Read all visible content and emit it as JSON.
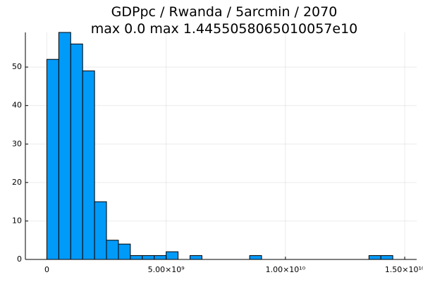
{
  "chart_data": {
    "type": "bar",
    "title": "GDPpc / Rwanda / 5arcmin / 2070",
    "subtitle": "max 0.0  max 1.4455058065010057e10",
    "xlabel": "",
    "ylabel": "",
    "bin_width": 500000000,
    "bins_start": 0,
    "values": [
      52,
      59,
      56,
      49,
      15,
      5,
      4,
      1,
      1,
      1,
      2,
      0,
      1,
      0,
      0,
      0,
      0,
      1,
      0,
      0,
      0,
      0,
      0,
      0,
      0,
      0,
      0,
      1,
      1
    ],
    "xlim": [
      -900000000,
      15500000000
    ],
    "ylim": [
      0,
      59
    ],
    "xticks": [
      {
        "value": 0,
        "label": "0"
      },
      {
        "value": 5000000000,
        "label": "5.00×10⁹"
      },
      {
        "value": 10000000000,
        "label": "1.00×10¹⁰"
      },
      {
        "value": 15000000000,
        "label": "1.50×10¹⁰"
      }
    ],
    "yticks": [
      {
        "value": 0,
        "label": "0"
      },
      {
        "value": 10,
        "label": "10"
      },
      {
        "value": 20,
        "label": "20"
      },
      {
        "value": 30,
        "label": "30"
      },
      {
        "value": 40,
        "label": "40"
      },
      {
        "value": 50,
        "label": "50"
      }
    ],
    "grid": true,
    "legend": "none",
    "bar_color": "#009af9"
  }
}
